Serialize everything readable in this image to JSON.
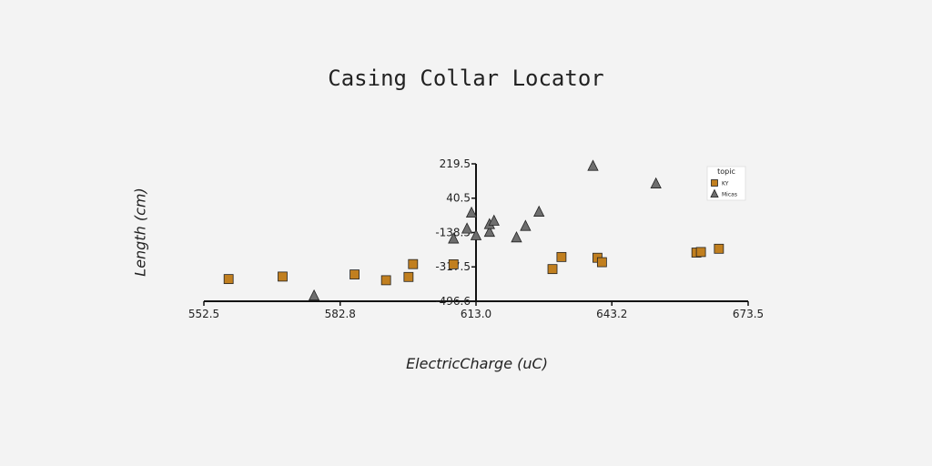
{
  "chart_data": {
    "type": "scatter",
    "title": "Casing Collar Locator",
    "xlabel": "ElectricCharge (uC)",
    "ylabel": "Length (cm)",
    "xlim": [
      552.5,
      673.5
    ],
    "ylim": [
      -496.6,
      219.5
    ],
    "x_ticks": [
      "552.5",
      "582.8",
      "613.0",
      "643.2",
      "673.5"
    ],
    "y_ticks": [
      "219.5",
      "40.5",
      "-138.5",
      "-317.5",
      "-496.6"
    ],
    "grid": false,
    "legend": {
      "title": "topic",
      "position": "top-right"
    },
    "series": [
      {
        "name": "KY",
        "marker": "square",
        "color": "#c17f1f",
        "points": [
          [
            558,
            -381
          ],
          [
            570,
            -368
          ],
          [
            586,
            -357
          ],
          [
            593,
            -387
          ],
          [
            598,
            -370
          ],
          [
            599,
            -303
          ],
          [
            608,
            -304
          ],
          [
            630,
            -329
          ],
          [
            632,
            -266
          ],
          [
            640,
            -270
          ],
          [
            641,
            -293
          ],
          [
            662,
            -243
          ],
          [
            663,
            -240
          ],
          [
            667,
            -223
          ]
        ]
      },
      {
        "name": "Micas",
        "marker": "triangle",
        "color": "#6e6e6e",
        "points": [
          [
            577,
            -467
          ],
          [
            608,
            -170
          ],
          [
            611,
            -118
          ],
          [
            612,
            -35
          ],
          [
            613,
            -153
          ],
          [
            616,
            -135
          ],
          [
            616,
            -95
          ],
          [
            617,
            -77
          ],
          [
            622,
            -164
          ],
          [
            624,
            -104
          ],
          [
            627,
            -30
          ],
          [
            639,
            209
          ],
          [
            653,
            117
          ]
        ]
      }
    ]
  }
}
